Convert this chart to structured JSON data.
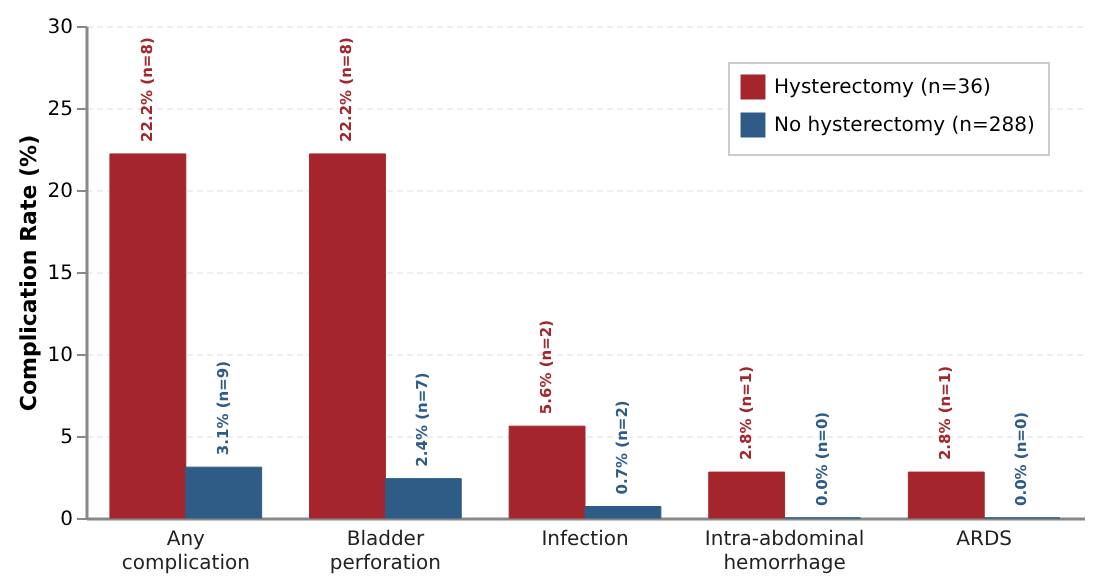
{
  "chart_data": {
    "type": "bar",
    "ylabel": "Complication Rate (%)",
    "categories": [
      "Any complication",
      "Bladder perforation",
      "Infection",
      "Intra-abdominal hemorrhage",
      "ARDS"
    ],
    "series": [
      {
        "name": "Hysterectomy (n=36)",
        "color": "#a4262c",
        "values": [
          22.2,
          22.2,
          5.6,
          2.8,
          2.8
        ],
        "value_labels": [
          "22.2% (n=8)",
          "22.2% (n=8)",
          "5.6% (n=2)",
          "2.8% (n=1)",
          "2.8% (n=1)"
        ]
      },
      {
        "name": "No hysterectomy (n=288)",
        "color": "#2e5c87",
        "values": [
          3.1,
          2.4,
          0.7,
          0.0,
          0.0
        ],
        "value_labels": [
          "3.1% (n=9)",
          "2.4% (n=7)",
          "0.7% (n=2)",
          "0.0% (n=0)",
          "0.0% (n=0)"
        ]
      }
    ],
    "ylim": [
      0,
      30
    ],
    "yticks": [
      0,
      5,
      10,
      15,
      20,
      25,
      30
    ],
    "grid": "y",
    "legend": "top right"
  }
}
